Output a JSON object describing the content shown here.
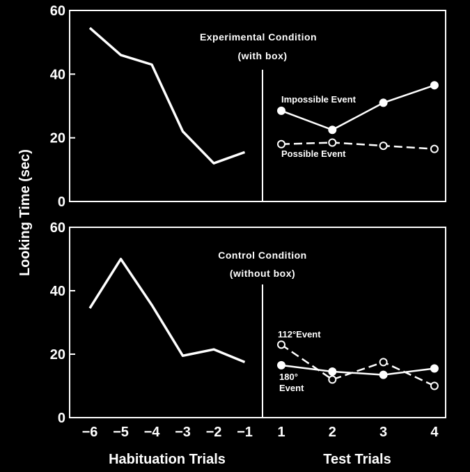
{
  "colors": {
    "background": "#000000",
    "foreground": "#ffffff"
  },
  "chart_data": [
    {
      "type": "line",
      "title": "Experimental Condition",
      "subtitle": "(with box)",
      "ylabel": "Looking Time (sec)",
      "ylim": [
        0,
        60
      ],
      "yticks": [
        "0",
        "20",
        "40",
        "60"
      ],
      "habituation": {
        "x": [
          -6,
          -5,
          -4,
          -3,
          -2,
          -1
        ],
        "values": [
          54.5,
          46,
          43,
          22,
          12,
          15.5
        ]
      },
      "test": {
        "x": [
          1,
          2,
          3,
          4
        ],
        "series": [
          {
            "name": "Impossible Event",
            "style": "solid",
            "marker": "filled",
            "values": [
              28.5,
              22.5,
              31,
              36.5
            ]
          },
          {
            "name": "Possible Event",
            "style": "dashed",
            "marker": "open",
            "values": [
              18,
              18.5,
              17.5,
              16.5
            ]
          }
        ]
      }
    },
    {
      "type": "line",
      "title": "Control Condition",
      "subtitle": "(without box)",
      "ylabel": "Looking Time (sec)",
      "ylim": [
        0,
        60
      ],
      "yticks": [
        "0",
        "20",
        "40",
        "60"
      ],
      "habituation": {
        "x": [
          -6,
          -5,
          -4,
          -3,
          -2,
          -1
        ],
        "values": [
          34.5,
          50,
          35.5,
          19.5,
          21.5,
          17.5
        ]
      },
      "test": {
        "x": [
          1,
          2,
          3,
          4
        ],
        "series": [
          {
            "name": "112°Event",
            "style": "dashed",
            "marker": "open",
            "values": [
              23,
              12,
              17.5,
              10
            ]
          },
          {
            "name": "180° Event",
            "name_lines": [
              "180°",
              "Event"
            ],
            "style": "solid",
            "marker": "filled",
            "values": [
              16.5,
              14.5,
              13.5,
              15.5
            ]
          }
        ]
      }
    }
  ],
  "x_axis": {
    "habituation_ticks": [
      "−6",
      "−5",
      "−4",
      "−3",
      "−2",
      "−1"
    ],
    "test_ticks": [
      "1",
      "2",
      "3",
      "4"
    ],
    "habituation_label": "Habituation Trials",
    "test_label": "Test Trials"
  },
  "ylabel": "Looking Time (sec)"
}
